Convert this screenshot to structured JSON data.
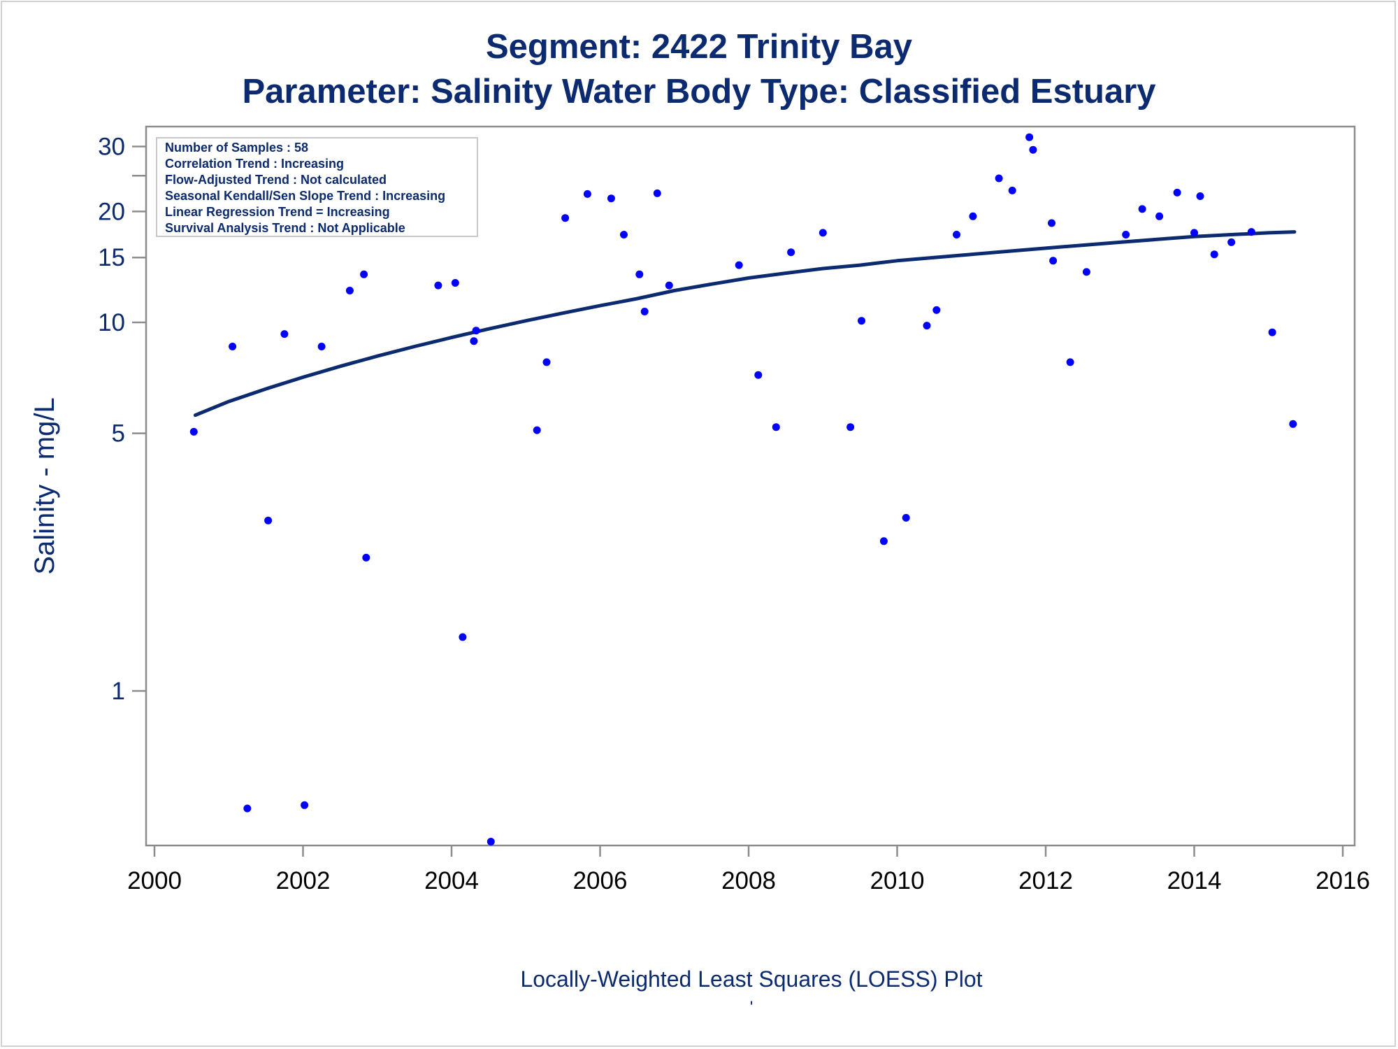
{
  "chart_data": {
    "type": "scatter",
    "title": "Segment: 2422  Trinity Bay",
    "subtitle": "Parameter: Salinity   Water Body Type: Classified Estuary",
    "ylabel": "Salinity - mg/L",
    "xlabel": "",
    "footer": "Locally-Weighted Least Squares (LOESS) Plot",
    "footer_mark": "'",
    "yscale": "log",
    "xlim": [
      2000,
      2016
    ],
    "ylim": [
      0.4,
      32
    ],
    "x_ticks": [
      "2000",
      "2002",
      "2004",
      "2006",
      "2008",
      "2010",
      "2012",
      "2014",
      "2016"
    ],
    "y_ticks": [
      {
        "value": 1,
        "label": "1"
      },
      {
        "value": 5,
        "label": "5"
      },
      {
        "value": 10,
        "label": "10"
      },
      {
        "value": 15,
        "label": "15"
      },
      {
        "value": 20,
        "label": "20"
      },
      {
        "value": 30,
        "label": "30"
      }
    ],
    "y_minor_ticks": [
      25
    ],
    "grid": false,
    "legend_placement": "top-left",
    "inset_lines": [
      "Number of Samples : 58",
      "Correlation Trend : Increasing",
      "Flow-Adjusted Trend : Not calculated",
      "Seasonal Kendall/Sen Slope Trend : Increasing",
      "Linear Regression Trend = Increasing",
      "Survival Analysis Trend : Not Applicable"
    ],
    "series": [
      {
        "kind": "points",
        "color": "#0000ff",
        "points": [
          {
            "x": 2000.53,
            "y": 5.05
          },
          {
            "x": 2001.05,
            "y": 8.6
          },
          {
            "x": 2001.25,
            "y": 0.48
          },
          {
            "x": 2001.53,
            "y": 2.9
          },
          {
            "x": 2001.75,
            "y": 9.3
          },
          {
            "x": 2002.02,
            "y": 0.49
          },
          {
            "x": 2002.25,
            "y": 8.6
          },
          {
            "x": 2002.63,
            "y": 12.2
          },
          {
            "x": 2002.82,
            "y": 13.5
          },
          {
            "x": 2002.85,
            "y": 2.3
          },
          {
            "x": 2003.82,
            "y": 12.6
          },
          {
            "x": 2004.05,
            "y": 12.8
          },
          {
            "x": 2004.15,
            "y": 1.4
          },
          {
            "x": 2004.3,
            "y": 8.9
          },
          {
            "x": 2004.33,
            "y": 9.5
          },
          {
            "x": 2004.53,
            "y": 0.39
          },
          {
            "x": 2005.15,
            "y": 5.1
          },
          {
            "x": 2005.28,
            "y": 7.8
          },
          {
            "x": 2005.53,
            "y": 19.2
          },
          {
            "x": 2005.83,
            "y": 22.3
          },
          {
            "x": 2006.15,
            "y": 21.7
          },
          {
            "x": 2006.32,
            "y": 17.3
          },
          {
            "x": 2006.53,
            "y": 13.5
          },
          {
            "x": 2006.6,
            "y": 10.7
          },
          {
            "x": 2006.77,
            "y": 22.4
          },
          {
            "x": 2006.93,
            "y": 12.6
          },
          {
            "x": 2007.87,
            "y": 14.3
          },
          {
            "x": 2008.13,
            "y": 7.2
          },
          {
            "x": 2008.37,
            "y": 5.2
          },
          {
            "x": 2008.57,
            "y": 15.5
          },
          {
            "x": 2009.0,
            "y": 17.5
          },
          {
            "x": 2009.37,
            "y": 5.2
          },
          {
            "x": 2009.52,
            "y": 10.1
          },
          {
            "x": 2009.82,
            "y": 2.55
          },
          {
            "x": 2010.12,
            "y": 2.95
          },
          {
            "x": 2010.4,
            "y": 9.8
          },
          {
            "x": 2010.53,
            "y": 10.8
          },
          {
            "x": 2010.8,
            "y": 17.3
          },
          {
            "x": 2011.02,
            "y": 19.4
          },
          {
            "x": 2011.37,
            "y": 24.6
          },
          {
            "x": 2011.55,
            "y": 22.8
          },
          {
            "x": 2011.78,
            "y": 31.8
          },
          {
            "x": 2011.83,
            "y": 29.4
          },
          {
            "x": 2012.08,
            "y": 18.6
          },
          {
            "x": 2012.1,
            "y": 14.7
          },
          {
            "x": 2012.33,
            "y": 7.8
          },
          {
            "x": 2012.55,
            "y": 13.7
          },
          {
            "x": 2013.08,
            "y": 17.3
          },
          {
            "x": 2013.3,
            "y": 20.3
          },
          {
            "x": 2013.53,
            "y": 19.4
          },
          {
            "x": 2013.77,
            "y": 22.5
          },
          {
            "x": 2014.0,
            "y": 17.5
          },
          {
            "x": 2014.08,
            "y": 22.0
          },
          {
            "x": 2014.27,
            "y": 15.3
          },
          {
            "x": 2014.5,
            "y": 16.5
          },
          {
            "x": 2014.77,
            "y": 17.6
          },
          {
            "x": 2015.05,
            "y": 9.4
          },
          {
            "x": 2015.33,
            "y": 5.3
          }
        ]
      },
      {
        "kind": "line",
        "color": "#0b2a6f",
        "points": [
          {
            "x": 2000.55,
            "y": 5.6
          },
          {
            "x": 2001.0,
            "y": 6.1
          },
          {
            "x": 2001.5,
            "y": 6.6
          },
          {
            "x": 2002.0,
            "y": 7.1
          },
          {
            "x": 2002.5,
            "y": 7.6
          },
          {
            "x": 2003.0,
            "y": 8.1
          },
          {
            "x": 2003.5,
            "y": 8.6
          },
          {
            "x": 2004.0,
            "y": 9.1
          },
          {
            "x": 2004.5,
            "y": 9.6
          },
          {
            "x": 2005.0,
            "y": 10.1
          },
          {
            "x": 2005.5,
            "y": 10.6
          },
          {
            "x": 2006.0,
            "y": 11.1
          },
          {
            "x": 2006.5,
            "y": 11.6
          },
          {
            "x": 2007.0,
            "y": 12.2
          },
          {
            "x": 2007.5,
            "y": 12.7
          },
          {
            "x": 2008.0,
            "y": 13.2
          },
          {
            "x": 2008.5,
            "y": 13.6
          },
          {
            "x": 2009.0,
            "y": 14.0
          },
          {
            "x": 2009.5,
            "y": 14.3
          },
          {
            "x": 2010.0,
            "y": 14.7
          },
          {
            "x": 2010.5,
            "y": 15.0
          },
          {
            "x": 2011.0,
            "y": 15.3
          },
          {
            "x": 2011.5,
            "y": 15.6
          },
          {
            "x": 2012.0,
            "y": 15.9
          },
          {
            "x": 2012.5,
            "y": 16.2
          },
          {
            "x": 2013.0,
            "y": 16.5
          },
          {
            "x": 2013.5,
            "y": 16.8
          },
          {
            "x": 2014.0,
            "y": 17.1
          },
          {
            "x": 2014.5,
            "y": 17.3
          },
          {
            "x": 2015.0,
            "y": 17.5
          },
          {
            "x": 2015.35,
            "y": 17.6
          }
        ]
      }
    ]
  }
}
